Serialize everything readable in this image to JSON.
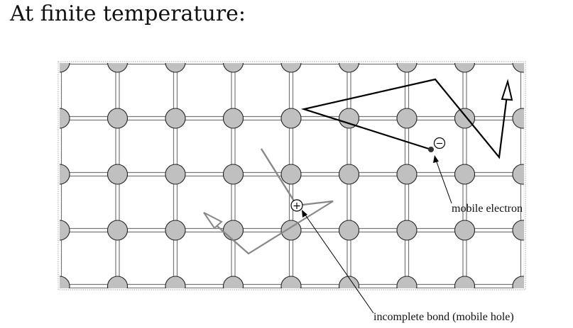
{
  "title": "At finite temperature:",
  "lattice": {
    "columns": 9,
    "rows": 5,
    "atom_color": "#c0c0c0"
  },
  "electron": {
    "label": "mobile electron",
    "sign": "−",
    "path_color": "#000000"
  },
  "hole": {
    "label": "incomplete bond (mobile hole)",
    "sign": "+",
    "path_color": "#888888"
  }
}
